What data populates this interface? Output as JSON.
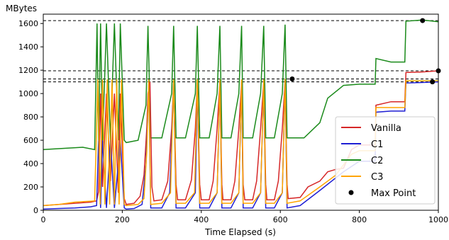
{
  "chart_data": {
    "type": "line",
    "ylabel": "MBytes",
    "xlabel": "Time Elapsed (s)",
    "xlim": [
      0,
      1000
    ],
    "ylim": [
      0,
      1680
    ],
    "xticks": [
      0,
      200,
      400,
      600,
      800,
      1000
    ],
    "yticks": [
      0,
      200,
      400,
      600,
      800,
      1000,
      1200,
      1400,
      1600
    ],
    "grid": false,
    "legend_position": "lower-right",
    "reference_lines": [
      1625,
      1195,
      1125,
      1100
    ],
    "series": [
      {
        "name": "Vanilla",
        "color": "#d62728",
        "points": [
          [
            0,
            40
          ],
          [
            40,
            50
          ],
          [
            80,
            60
          ],
          [
            120,
            70
          ],
          [
            135,
            80
          ],
          [
            140,
            160
          ],
          [
            145,
            1000
          ],
          [
            150,
            200
          ],
          [
            160,
            1000
          ],
          [
            170,
            250
          ],
          [
            180,
            1000
          ],
          [
            190,
            150
          ],
          [
            195,
            1000
          ],
          [
            205,
            100
          ],
          [
            210,
            50
          ],
          [
            230,
            60
          ],
          [
            245,
            120
          ],
          [
            255,
            300
          ],
          [
            262,
            700
          ],
          [
            265,
            1000
          ],
          [
            270,
            1100
          ],
          [
            275,
            200
          ],
          [
            280,
            80
          ],
          [
            300,
            90
          ],
          [
            315,
            250
          ],
          [
            325,
            700
          ],
          [
            330,
            1100
          ],
          [
            336,
            220
          ],
          [
            340,
            90
          ],
          [
            360,
            90
          ],
          [
            375,
            260
          ],
          [
            385,
            700
          ],
          [
            390,
            1100
          ],
          [
            396,
            220
          ],
          [
            400,
            90
          ],
          [
            420,
            90
          ],
          [
            430,
            250
          ],
          [
            440,
            700
          ],
          [
            447,
            1100
          ],
          [
            452,
            220
          ],
          [
            455,
            90
          ],
          [
            475,
            90
          ],
          [
            485,
            250
          ],
          [
            495,
            700
          ],
          [
            502,
            1100
          ],
          [
            506,
            220
          ],
          [
            510,
            90
          ],
          [
            530,
            90
          ],
          [
            540,
            250
          ],
          [
            550,
            700
          ],
          [
            558,
            1100
          ],
          [
            563,
            220
          ],
          [
            566,
            90
          ],
          [
            585,
            90
          ],
          [
            595,
            250
          ],
          [
            605,
            700
          ],
          [
            612,
            1110
          ],
          [
            617,
            220
          ],
          [
            620,
            100
          ],
          [
            650,
            110
          ],
          [
            670,
            200
          ],
          [
            700,
            250
          ],
          [
            720,
            330
          ],
          [
            740,
            350
          ],
          [
            760,
            360
          ],
          [
            780,
            520
          ],
          [
            800,
            560
          ],
          [
            840,
            560
          ],
          [
            842,
            900
          ],
          [
            880,
            930
          ],
          [
            915,
            930
          ],
          [
            918,
            1180
          ],
          [
            960,
            1185
          ],
          [
            1000,
            1195
          ]
        ]
      },
      {
        "name": "C1",
        "color": "#1f1fd4",
        "points": [
          [
            0,
            10
          ],
          [
            40,
            15
          ],
          [
            80,
            20
          ],
          [
            120,
            30
          ],
          [
            135,
            40
          ],
          [
            140,
            600
          ],
          [
            145,
            20
          ],
          [
            150,
            600
          ],
          [
            160,
            20
          ],
          [
            170,
            600
          ],
          [
            180,
            20
          ],
          [
            195,
            600
          ],
          [
            205,
            20
          ],
          [
            210,
            10
          ],
          [
            230,
            15
          ],
          [
            250,
            50
          ],
          [
            260,
            400
          ],
          [
            267,
            1080
          ],
          [
            272,
            20
          ],
          [
            300,
            20
          ],
          [
            320,
            150
          ],
          [
            330,
            1080
          ],
          [
            336,
            20
          ],
          [
            360,
            20
          ],
          [
            385,
            150
          ],
          [
            390,
            1080
          ],
          [
            396,
            20
          ],
          [
            420,
            20
          ],
          [
            440,
            150
          ],
          [
            447,
            1080
          ],
          [
            452,
            20
          ],
          [
            475,
            20
          ],
          [
            495,
            150
          ],
          [
            502,
            1080
          ],
          [
            506,
            20
          ],
          [
            530,
            20
          ],
          [
            550,
            150
          ],
          [
            558,
            1080
          ],
          [
            563,
            20
          ],
          [
            585,
            20
          ],
          [
            605,
            150
          ],
          [
            612,
            1100
          ],
          [
            617,
            20
          ],
          [
            650,
            40
          ],
          [
            700,
            170
          ],
          [
            760,
            330
          ],
          [
            800,
            420
          ],
          [
            840,
            420
          ],
          [
            842,
            840
          ],
          [
            880,
            850
          ],
          [
            915,
            850
          ],
          [
            918,
            1090
          ],
          [
            960,
            1095
          ],
          [
            1000,
            1100
          ]
        ]
      },
      {
        "name": "C2",
        "color": "#1a8a1a",
        "points": [
          [
            0,
            520
          ],
          [
            50,
            530
          ],
          [
            100,
            540
          ],
          [
            130,
            520
          ],
          [
            136,
            1600
          ],
          [
            140,
            600
          ],
          [
            145,
            1600
          ],
          [
            150,
            600
          ],
          [
            160,
            1600
          ],
          [
            170,
            600
          ],
          [
            180,
            1600
          ],
          [
            190,
            600
          ],
          [
            195,
            1600
          ],
          [
            205,
            600
          ],
          [
            210,
            580
          ],
          [
            240,
            600
          ],
          [
            260,
            900
          ],
          [
            265,
            1580
          ],
          [
            272,
            620
          ],
          [
            300,
            620
          ],
          [
            325,
            1000
          ],
          [
            330,
            1580
          ],
          [
            336,
            620
          ],
          [
            360,
            620
          ],
          [
            385,
            1000
          ],
          [
            390,
            1580
          ],
          [
            396,
            620
          ],
          [
            420,
            620
          ],
          [
            440,
            1000
          ],
          [
            447,
            1580
          ],
          [
            452,
            620
          ],
          [
            475,
            620
          ],
          [
            495,
            1000
          ],
          [
            502,
            1580
          ],
          [
            506,
            620
          ],
          [
            530,
            620
          ],
          [
            550,
            1000
          ],
          [
            558,
            1580
          ],
          [
            563,
            620
          ],
          [
            585,
            620
          ],
          [
            605,
            1000
          ],
          [
            612,
            1590
          ],
          [
            617,
            620
          ],
          [
            660,
            620
          ],
          [
            700,
            750
          ],
          [
            720,
            960
          ],
          [
            760,
            1070
          ],
          [
            800,
            1080
          ],
          [
            840,
            1080
          ],
          [
            842,
            1300
          ],
          [
            880,
            1270
          ],
          [
            915,
            1270
          ],
          [
            918,
            1620
          ],
          [
            960,
            1630
          ],
          [
            1000,
            1615
          ]
        ]
      },
      {
        "name": "C3",
        "color": "#ffa500",
        "points": [
          [
            0,
            40
          ],
          [
            40,
            50
          ],
          [
            80,
            70
          ],
          [
            130,
            80
          ],
          [
            138,
            1120
          ],
          [
            144,
            50
          ],
          [
            150,
            1120
          ],
          [
            156,
            50
          ],
          [
            162,
            1120
          ],
          [
            168,
            50
          ],
          [
            174,
            1120
          ],
          [
            180,
            50
          ],
          [
            186,
            1120
          ],
          [
            192,
            50
          ],
          [
            198,
            1120
          ],
          [
            205,
            50
          ],
          [
            210,
            40
          ],
          [
            240,
            50
          ],
          [
            255,
            100
          ],
          [
            262,
            500
          ],
          [
            267,
            1120
          ],
          [
            272,
            50
          ],
          [
            300,
            60
          ],
          [
            322,
            150
          ],
          [
            330,
            1120
          ],
          [
            336,
            60
          ],
          [
            360,
            60
          ],
          [
            383,
            150
          ],
          [
            390,
            1120
          ],
          [
            396,
            60
          ],
          [
            420,
            60
          ],
          [
            440,
            150
          ],
          [
            447,
            1120
          ],
          [
            452,
            60
          ],
          [
            475,
            60
          ],
          [
            495,
            150
          ],
          [
            502,
            1120
          ],
          [
            506,
            60
          ],
          [
            530,
            60
          ],
          [
            550,
            150
          ],
          [
            558,
            1120
          ],
          [
            563,
            60
          ],
          [
            585,
            60
          ],
          [
            605,
            150
          ],
          [
            612,
            1125
          ],
          [
            617,
            60
          ],
          [
            650,
            80
          ],
          [
            700,
            200
          ],
          [
            740,
            300
          ],
          [
            780,
            480
          ],
          [
            800,
            510
          ],
          [
            840,
            510
          ],
          [
            842,
            880
          ],
          [
            880,
            880
          ],
          [
            915,
            880
          ],
          [
            918,
            1110
          ],
          [
            960,
            1110
          ],
          [
            1000,
            1110
          ]
        ]
      }
    ],
    "max_points": {
      "name": "Max Point",
      "color": "#000000",
      "points": [
        [
          960,
          1625
        ],
        [
          1000,
          1195
        ],
        [
          630,
          1125
        ],
        [
          985,
          1100
        ]
      ]
    }
  }
}
